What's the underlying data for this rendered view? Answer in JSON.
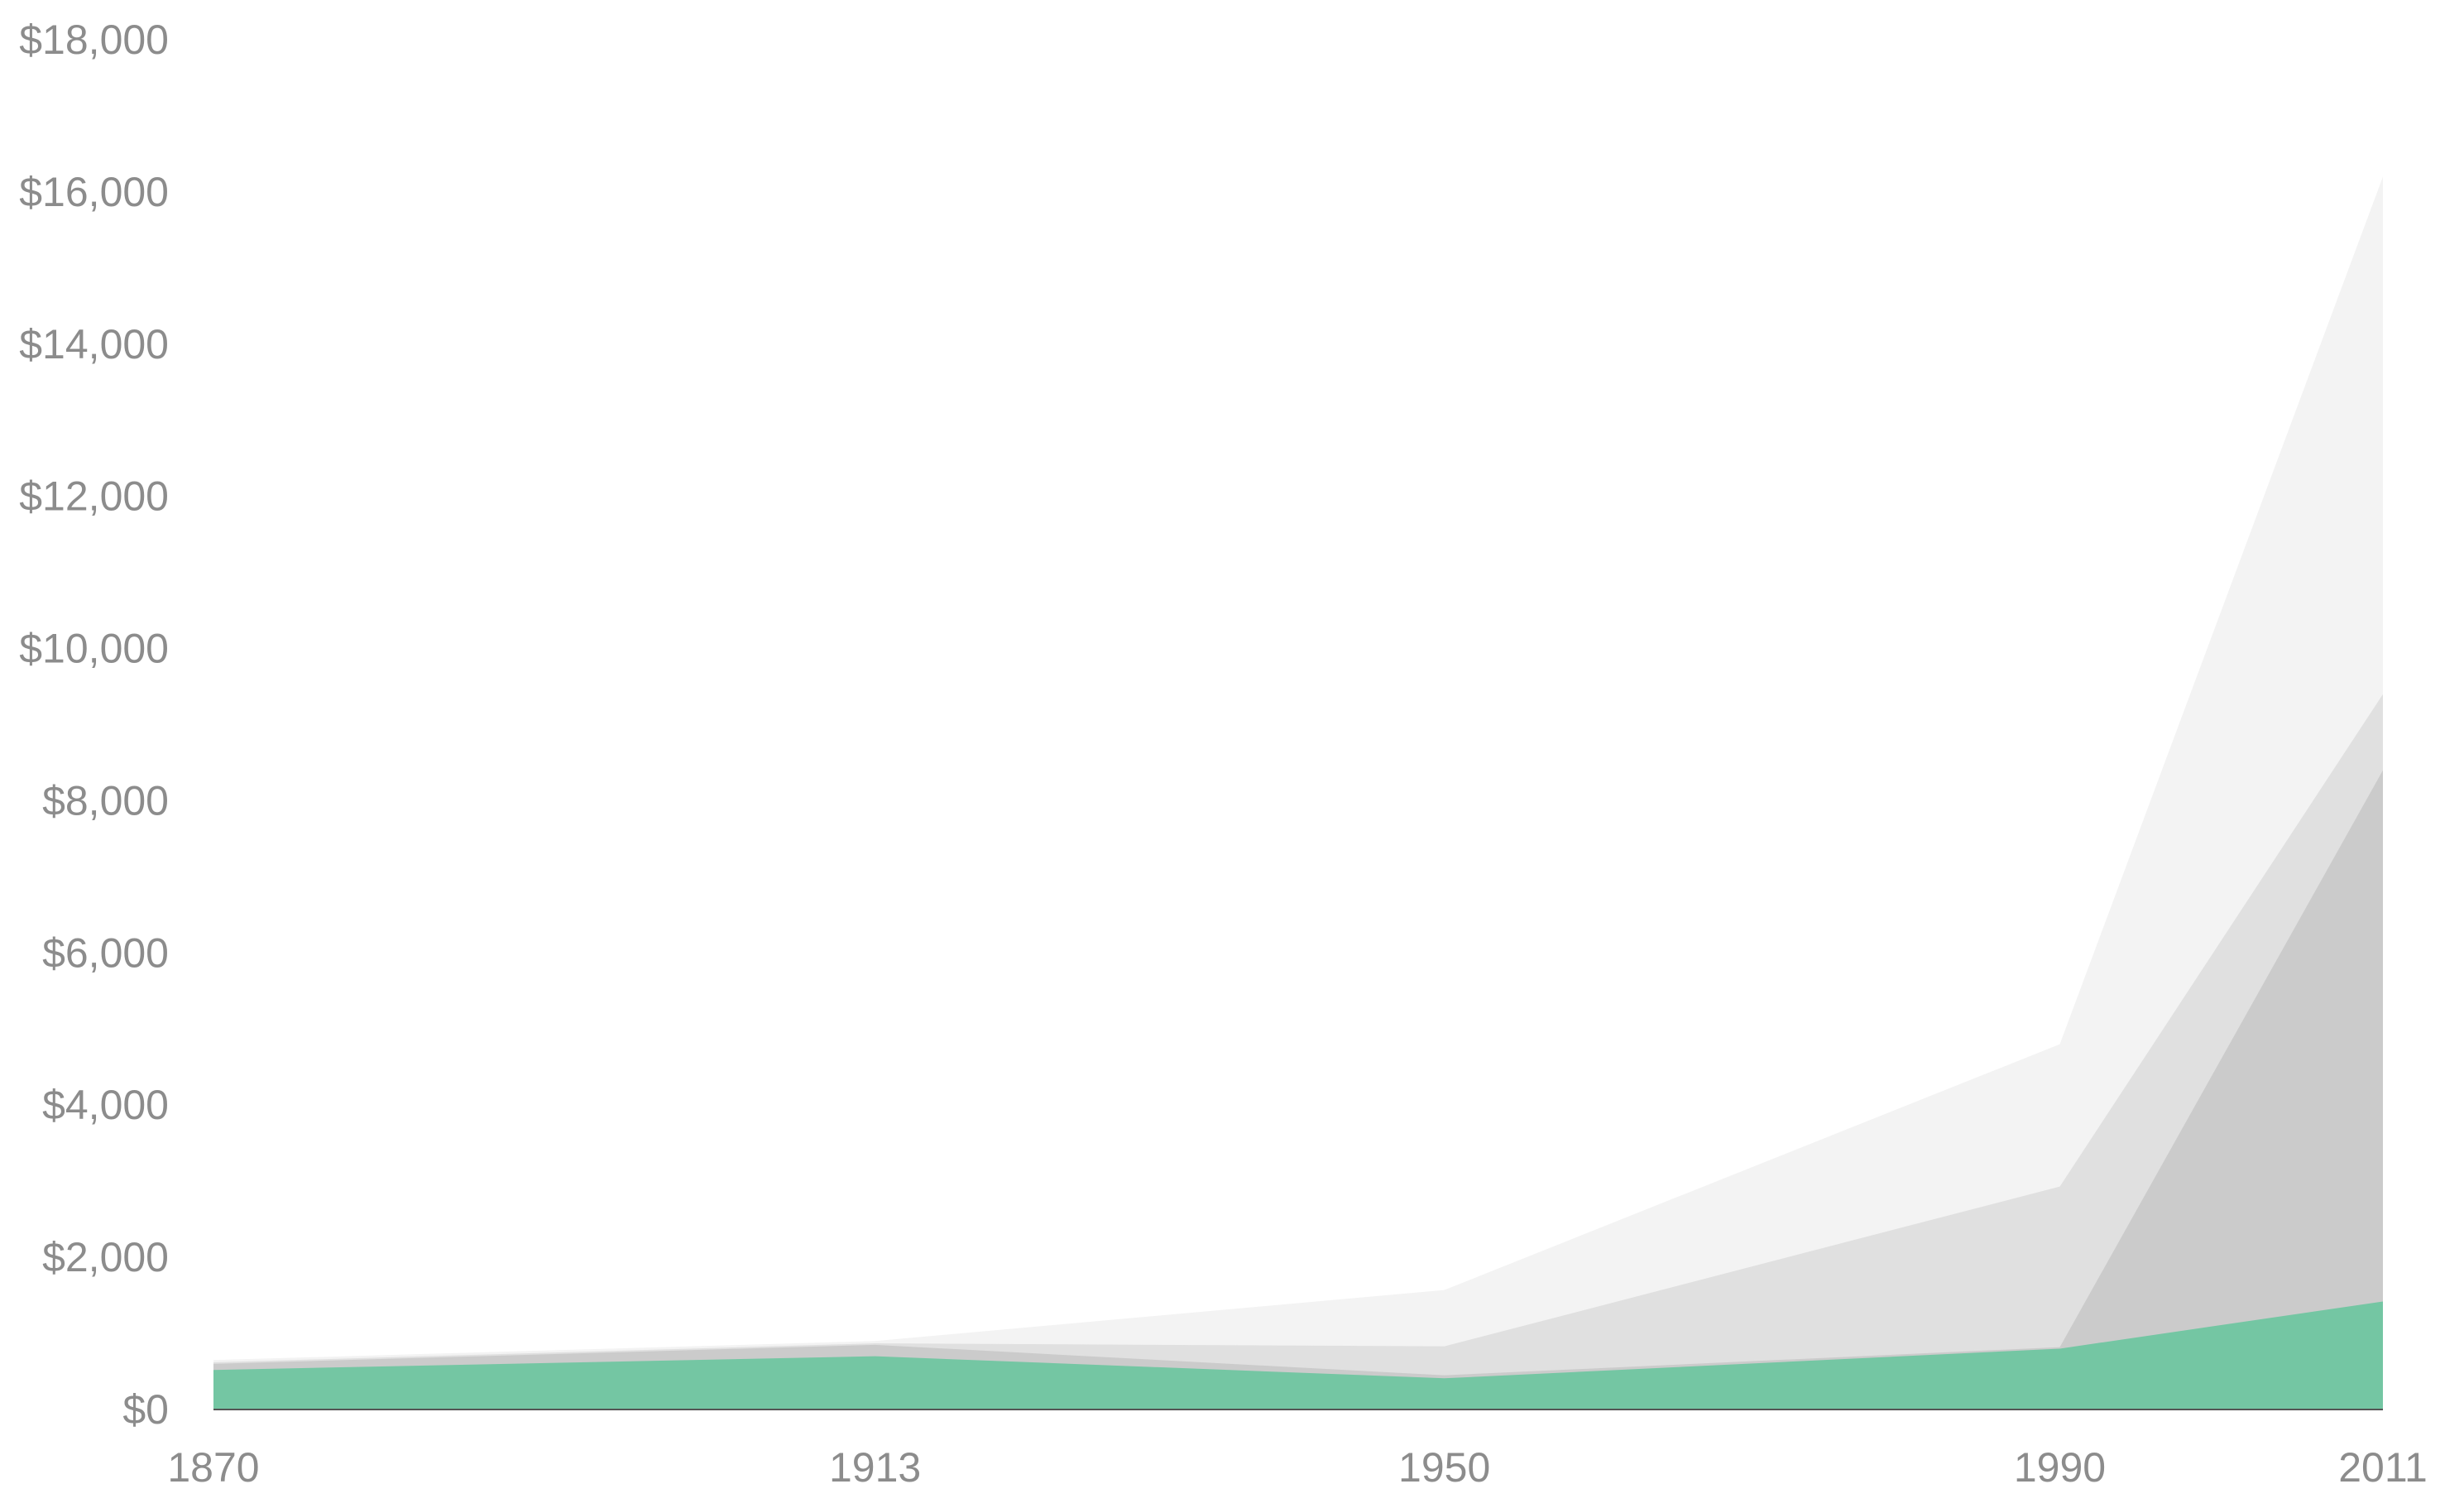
{
  "chart_data": {
    "type": "area",
    "stacked": false,
    "x": [
      1870,
      1913,
      1950,
      1990,
      2011
    ],
    "x_tick_labels": [
      "1870",
      "1913",
      "1950",
      "1990",
      "2011"
    ],
    "ylim": [
      0,
      18000
    ],
    "y_ticks": [
      0,
      2000,
      4000,
      6000,
      8000,
      10000,
      12000,
      14000,
      16000,
      18000
    ],
    "y_tick_labels": [
      "$0",
      "$2,000",
      "$4,000",
      "$6,000",
      "$8,000",
      "$10,000",
      "$12,000",
      "$14,000",
      "$16,000",
      "$18,000"
    ],
    "title": "",
    "xlabel": "",
    "ylabel": "",
    "grid": false,
    "series": [
      {
        "values": [
          650,
          900,
          1570,
          4800,
          16200
        ],
        "color": "#f3f3f3"
      },
      {
        "values": [
          620,
          870,
          830,
          2930,
          9400
        ],
        "color": "#e0e0e0"
      },
      {
        "values": [
          600,
          850,
          450,
          820,
          8400
        ],
        "color": "#cbcbcb"
      },
      {
        "values": [
          520,
          700,
          410,
          800,
          1420
        ],
        "color": "#74c6a3"
      }
    ],
    "axis_color": "#555555"
  }
}
